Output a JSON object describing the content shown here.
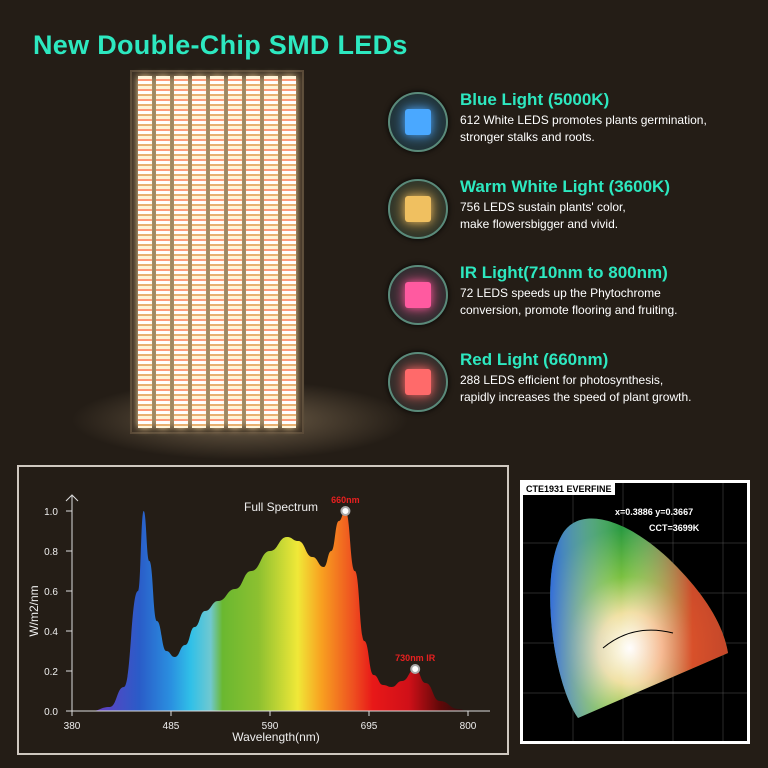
{
  "headline": "New Double-Chip SMD LEDs",
  "features": [
    {
      "title": "Blue Light (5000K)",
      "line1": "612 White LEDS promotes plants germination,",
      "line2": "stronger stalks and roots.",
      "icon": "blue-chip-icon",
      "color": "#4aa8ff"
    },
    {
      "title": "Warm White Light (3600K)",
      "line1": "756 LEDS sustain plants' color,",
      "line2": "make flowersbigger and vivid.",
      "icon": "warm-white-chip-icon",
      "color": "#f0c060"
    },
    {
      "title": "IR Light(710nm to 800nm)",
      "line1": "72 LEDS speeds up the Phytochrome",
      "line2": "conversion, promote flooring and fruiting.",
      "icon": "ir-chip-icon",
      "color": "#ff5aa0"
    },
    {
      "title": "Red Light (660nm)",
      "line1": "288 LEDS efficient for photosynthesis,",
      "line2": "rapidly increases the speed of plant growth.",
      "icon": "red-chip-icon",
      "color": "#ff6a6a"
    }
  ],
  "chart_data": {
    "type": "area",
    "title": "Full Spectrum",
    "xlabel": "Wavelength(nm)",
    "ylabel": "W/m2/nm",
    "xlim": [
      380,
      800
    ],
    "ylim": [
      0,
      1.0
    ],
    "xticks": [
      "380",
      "485",
      "590",
      "695",
      "800"
    ],
    "yticks": [
      "0.0",
      "0.2",
      "0.4",
      "0.6",
      "0.8",
      "1.0"
    ],
    "grid": false,
    "x": [
      400,
      420,
      435,
      450,
      456,
      462,
      470,
      480,
      489,
      500,
      510,
      521,
      535,
      553,
      570,
      590,
      608,
      620,
      635,
      647,
      655,
      663,
      670,
      680,
      690,
      700,
      710,
      719,
      730,
      744,
      755,
      770,
      790,
      800
    ],
    "y": [
      0,
      0.02,
      0.12,
      0.6,
      1.0,
      0.75,
      0.45,
      0.3,
      0.27,
      0.33,
      0.42,
      0.5,
      0.55,
      0.61,
      0.7,
      0.8,
      0.87,
      0.85,
      0.77,
      0.72,
      0.8,
      0.95,
      1.0,
      0.7,
      0.35,
      0.18,
      0.13,
      0.12,
      0.15,
      0.21,
      0.14,
      0.05,
      0.01,
      0
    ],
    "annotations": [
      {
        "label": "660nm",
        "x": 670,
        "y": 1.0
      },
      {
        "label": "730nm IR",
        "x": 744,
        "y": 0.21
      }
    ]
  },
  "cie": {
    "label": "CTE1931  EVERFINE",
    "coords": "x=0.3886  y=0.3667",
    "cct": "CCT=3699K"
  }
}
